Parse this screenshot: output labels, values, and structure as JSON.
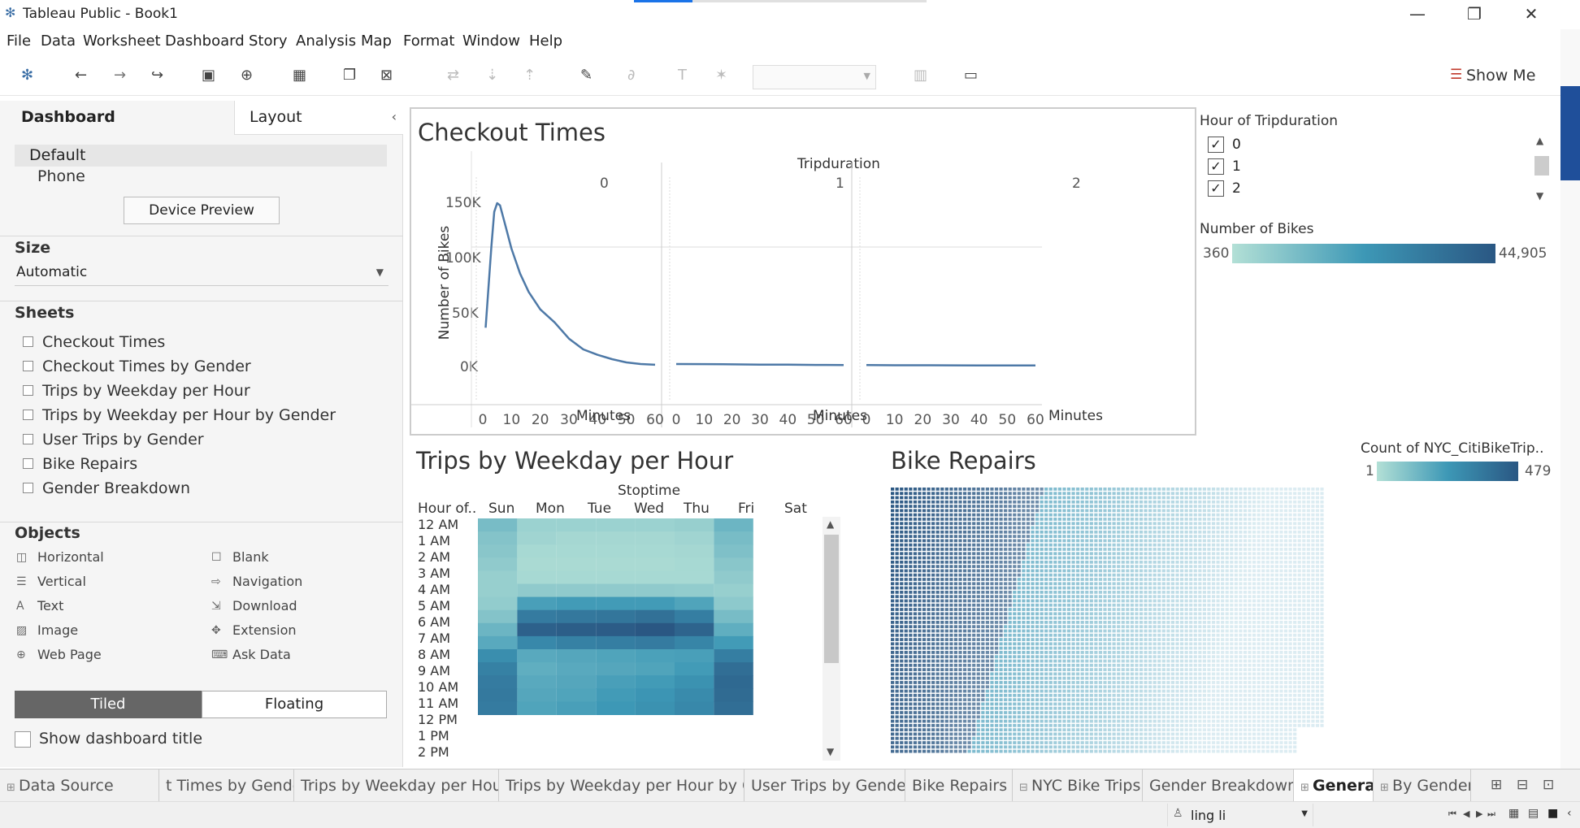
{
  "window": {
    "title": "Tableau Public - Book1",
    "minimize": "—",
    "restore": "❐",
    "close": "✕"
  },
  "menu": [
    "File",
    "Data",
    "Worksheet",
    "Dashboard",
    "Story",
    "Analysis",
    "Map",
    "Format",
    "Window",
    "Help"
  ],
  "toolbar": {
    "show_me": "Show Me"
  },
  "left_pane": {
    "tabs": {
      "dashboard": "Dashboard",
      "layout": "Layout"
    },
    "devices": [
      "Default",
      "Phone"
    ],
    "device_preview": "Device Preview",
    "size_title": "Size",
    "size_value": "Automatic",
    "sheets_title": "Sheets",
    "sheets": [
      "Checkout Times",
      "Checkout Times by Gender",
      "Trips by Weekday per Hour",
      "Trips by Weekday per Hour by Gender",
      "User Trips by Gender",
      "Bike Repairs",
      "Gender Breakdown"
    ],
    "objects_title": "Objects",
    "objects": [
      "Horizontal",
      "Blank",
      "Vertical",
      "Navigation",
      "Text",
      "Download",
      "Image",
      "Extension",
      "Web Page",
      "Ask Data"
    ],
    "tiled": "Tiled",
    "floating": "Floating",
    "show_title": "Show dashboard title"
  },
  "checkout": {
    "title": "Checkout Times",
    "panel_header": "Tripduration",
    "panels": [
      "0",
      "1",
      "2"
    ],
    "ylabel": "Number of Bikes",
    "yticks": [
      "150K",
      "100K",
      "50K",
      "0K"
    ],
    "xticks": [
      "0",
      "10",
      "20",
      "30",
      "40",
      "50",
      "60"
    ],
    "xlabel": "Minutes"
  },
  "filter": {
    "title": "Hour of Tripduration",
    "items": [
      {
        "label": "0",
        "checked": true
      },
      {
        "label": "1",
        "checked": true
      },
      {
        "label": "2",
        "checked": true
      }
    ]
  },
  "legend_bikes": {
    "title": "Number of Bikes",
    "min": "360",
    "max": "44,905"
  },
  "legend_count": {
    "title": "Count of NYC_CitiBikeTrip..",
    "min": "1",
    "max": "479"
  },
  "heatmap": {
    "title": "Trips by Weekday per Hour",
    "col_header": "Stoptime",
    "row_header": "Hour of..",
    "days": [
      "Sun",
      "Mon",
      "Tue",
      "Wed",
      "Thu",
      "Fri",
      "Sat"
    ],
    "hours": [
      "12 AM",
      "1 AM",
      "2 AM",
      "3 AM",
      "4 AM",
      "5 AM",
      "6 AM",
      "7 AM",
      "8 AM",
      "9 AM",
      "10 AM",
      "11 AM",
      "12 PM",
      "1 PM",
      "2 PM"
    ]
  },
  "repairs": {
    "title": "Bike Repairs"
  },
  "tabs": [
    "Data Source",
    "t Times by Gender",
    "Trips by Weekday per Hour",
    "Trips by Weekday per Hour by G...",
    "User Trips by Gender",
    "Bike Repairs",
    "NYC Bike Trips",
    "Gender Breakdown",
    "General",
    "By Gender"
  ],
  "status": {
    "user": "ling li"
  },
  "colors": {
    "dark": "#2a5783",
    "mid": "#3d98b6",
    "light": "#b3e0d6"
  },
  "chart_data": [
    {
      "type": "line",
      "title": "Checkout Times",
      "xlabel": "Minutes",
      "ylabel": "Number of Bikes",
      "ylim": [
        0,
        150000
      ],
      "xlim": [
        0,
        60
      ],
      "panels": [
        {
          "name": "0",
          "x": [
            1,
            3,
            4,
            5,
            6,
            8,
            10,
            13,
            16,
            20,
            25,
            30,
            35,
            40,
            45,
            50,
            55,
            60
          ],
          "y": [
            35000,
            110000,
            142000,
            150000,
            148000,
            128000,
            108000,
            85000,
            68000,
            52000,
            40000,
            25000,
            15000,
            10000,
            6000,
            3000,
            1500,
            800
          ]
        },
        {
          "name": "1",
          "x": [
            0,
            10,
            20,
            30,
            40,
            50,
            60
          ],
          "y": [
            1500,
            1400,
            1200,
            1000,
            900,
            700,
            600
          ]
        },
        {
          "name": "2",
          "x": [
            0,
            10,
            20,
            30,
            40,
            50,
            60
          ],
          "y": [
            500,
            400,
            350,
            300,
            250,
            200,
            150
          ]
        }
      ]
    }
  ]
}
